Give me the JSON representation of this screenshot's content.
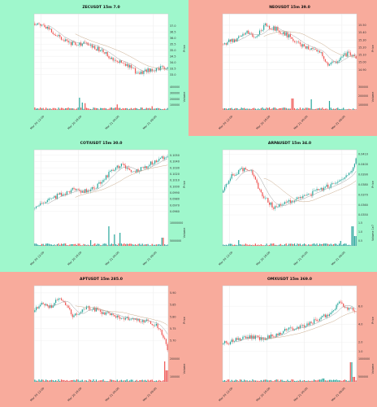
{
  "colors": {
    "green_bg": "#9ff7cc",
    "red_bg": "#f8ab9c",
    "up": "#26a69a",
    "down": "#ef5350",
    "ma_fast": "#9e9e9e",
    "ma_slow": "#c8a989"
  },
  "chart_data": [
    {
      "type": "candlestick",
      "title": "ZECUSDT 15m 7.0",
      "background": "green",
      "ylabel_price": "Price",
      "ylabel_volume": "Volume",
      "price_range": [
        32.3,
        37.8
      ],
      "price_ticks": [
        "37.0",
        "36.5",
        "36.0",
        "35.5",
        "35.0",
        "34.5",
        "34.0",
        "33.5",
        "33.0"
      ],
      "volume_ticks": [
        "400000",
        "300000",
        "200000",
        "100000"
      ],
      "volume_max": 400000,
      "x_ticks": [
        "Mar 20 12:00",
        "Mar 20 18:00",
        "Mar 21 00:00",
        "Mar 21 06:00"
      ],
      "start_price": 37.2,
      "end_price": 33.6,
      "path": [
        [
          0,
          37.2
        ],
        [
          0.08,
          37.1
        ],
        [
          0.18,
          36.2
        ],
        [
          0.28,
          35.6
        ],
        [
          0.4,
          35.5
        ],
        [
          0.5,
          35.0
        ],
        [
          0.58,
          34.4
        ],
        [
          0.68,
          33.9
        ],
        [
          0.78,
          33.1
        ],
        [
          0.86,
          33.4
        ],
        [
          1,
          33.6
        ]
      ],
      "volume_spikes": [
        [
          0.34,
          200000
        ],
        [
          0.36,
          120000
        ],
        [
          0.38,
          110000
        ],
        [
          0.62,
          90000
        ],
        [
          0.88,
          60000
        ]
      ]
    },
    {
      "type": "candlestick",
      "title": "NEOUSDT 15m 39.0",
      "background": "red",
      "ylabel_price": "Price",
      "ylabel_volume": "Volume",
      "price_range": [
        14.72,
        15.62
      ],
      "price_ticks": [
        "15.50",
        "15.40",
        "15.30",
        "15.20",
        "15.10",
        "15.00",
        "14.90"
      ],
      "volume_ticks": [
        "300000",
        "200000",
        "100000"
      ],
      "volume_max": 300000,
      "x_ticks": [
        "Mar 20 12:00",
        "Mar 20 18:00",
        "Mar 21 00:00",
        "Mar 21 06:00"
      ],
      "start_price": 15.25,
      "end_price": 15.05,
      "path": [
        [
          0,
          15.25
        ],
        [
          0.1,
          15.3
        ],
        [
          0.18,
          15.42
        ],
        [
          0.25,
          15.33
        ],
        [
          0.32,
          15.5
        ],
        [
          0.4,
          15.45
        ],
        [
          0.48,
          15.38
        ],
        [
          0.56,
          15.25
        ],
        [
          0.65,
          15.2
        ],
        [
          0.74,
          15.12
        ],
        [
          0.8,
          14.95
        ],
        [
          0.88,
          15.05
        ],
        [
          0.94,
          15.12
        ],
        [
          1,
          15.05
        ]
      ],
      "volume_spikes": [
        [
          0.52,
          140000
        ],
        [
          0.66,
          130000
        ],
        [
          0.8,
          110000
        ]
      ]
    },
    {
      "type": "candlestick",
      "title": "COTIUSDT 15m 30.0",
      "background": "green",
      "ylabel_price": "Price",
      "ylabel_volume": "Volume",
      "price_range": [
        0.0948,
        0.1055
      ],
      "price_ticks": [
        "0.1050",
        "0.1040",
        "0.1030",
        "0.1020",
        "0.1010",
        "0.1000",
        "0.0990",
        "0.0980",
        "0.0970",
        "0.0960"
      ],
      "volume_ticks": [
        "10000000",
        "5000000"
      ],
      "volume_max": 15000000,
      "x_ticks": [
        "Mar 20 12:00",
        "Mar 20 18:00",
        "Mar 21 00:00",
        "Mar 21 06:00"
      ],
      "start_price": 0.0965,
      "end_price": 0.1048,
      "path": [
        [
          0,
          0.0965
        ],
        [
          0.08,
          0.0975
        ],
        [
          0.18,
          0.0985
        ],
        [
          0.3,
          0.0995
        ],
        [
          0.4,
          0.0992
        ],
        [
          0.5,
          0.1005
        ],
        [
          0.58,
          0.1025
        ],
        [
          0.66,
          0.1035
        ],
        [
          0.74,
          0.1022
        ],
        [
          0.82,
          0.103
        ],
        [
          0.9,
          0.104
        ],
        [
          1,
          0.1048
        ]
      ],
      "volume_spikes": [
        [
          0.56,
          12000000
        ],
        [
          0.6,
          7000000
        ],
        [
          0.64,
          8000000
        ],
        [
          0.42,
          3500000
        ],
        [
          0.96,
          5000000
        ]
      ]
    },
    {
      "type": "candlestick",
      "title": "ARPAUSDT 15m 34.0",
      "background": "green",
      "ylabel_price": "Price",
      "ylabel_volume": "Volume 1e7",
      "price_range": [
        0.0346,
        0.0412
      ],
      "price_ticks": [
        "0.0410",
        "0.0400",
        "0.0390",
        "0.0380",
        "0.0370",
        "0.0360",
        "0.0350"
      ],
      "volume_ticks": [
        "1.5",
        "1.0",
        "0.5"
      ],
      "volume_max": 1.5,
      "x_ticks": [
        "Mar 20 12:00",
        "Mar 20 18:00",
        "Mar 21 00:00",
        "Mar 21 06:00"
      ],
      "start_price": 0.0372,
      "end_price": 0.0406,
      "path": [
        [
          0,
          0.0372
        ],
        [
          0.08,
          0.039
        ],
        [
          0.15,
          0.0395
        ],
        [
          0.22,
          0.0392
        ],
        [
          0.3,
          0.037
        ],
        [
          0.38,
          0.0358
        ],
        [
          0.46,
          0.036
        ],
        [
          0.54,
          0.0365
        ],
        [
          0.62,
          0.0368
        ],
        [
          0.72,
          0.0375
        ],
        [
          0.82,
          0.038
        ],
        [
          0.9,
          0.0385
        ],
        [
          0.96,
          0.0392
        ],
        [
          1,
          0.0406
        ]
      ],
      "volume_spikes": [
        [
          0.12,
          0.35
        ],
        [
          0.88,
          0.3
        ],
        [
          0.97,
          1.2
        ],
        [
          0.99,
          0.6
        ]
      ]
    },
    {
      "type": "candlestick",
      "title": "APTUSDT 15m 285.0",
      "background": "red",
      "ylabel_price": "Price",
      "ylabel_volume": "Volume",
      "price_range": [
        5.64,
        5.92
      ],
      "price_ticks": [
        "5.90",
        "5.85",
        "5.80",
        "5.75",
        "5.70"
      ],
      "volume_ticks": [
        "200000",
        "100000"
      ],
      "volume_max": 300000,
      "x_ticks": [
        "Mar 20 12:00",
        "Mar 20 18:00",
        "Mar 21 00:00",
        "Mar 21 06:00"
      ],
      "start_price": 5.82,
      "end_price": 5.66,
      "path": [
        [
          0,
          5.82
        ],
        [
          0.06,
          5.86
        ],
        [
          0.12,
          5.84
        ],
        [
          0.2,
          5.88
        ],
        [
          0.3,
          5.8
        ],
        [
          0.38,
          5.84
        ],
        [
          0.46,
          5.83
        ],
        [
          0.56,
          5.81
        ],
        [
          0.66,
          5.8
        ],
        [
          0.76,
          5.79
        ],
        [
          0.86,
          5.78
        ],
        [
          0.93,
          5.76
        ],
        [
          0.97,
          5.72
        ],
        [
          1,
          5.66
        ]
      ],
      "volume_spikes": [
        [
          0.98,
          250000
        ],
        [
          0.99,
          140000
        ]
      ]
    },
    {
      "type": "candlestick",
      "title": "OMXUSDT 15m 369.0",
      "background": "red",
      "ylabel_price": "Price",
      "ylabel_volume": "Volume",
      "price_range": [
        0.6,
        8.0
      ],
      "price_ticks": [
        "6.0",
        "4.0",
        "2.0",
        "1.0"
      ],
      "volume_ticks": [
        "1000000",
        "500000"
      ],
      "volume_max": 1500000,
      "x_ticks": [
        "Mar 20 12:00",
        "Mar 20 18:00",
        "Mar 21 00:00",
        "Mar 21 06:00"
      ],
      "start_price": 1.8,
      "end_price": 5.4,
      "path": [
        [
          0,
          1.8
        ],
        [
          0.1,
          2.2
        ],
        [
          0.2,
          2.6
        ],
        [
          0.32,
          2.4
        ],
        [
          0.42,
          3.0
        ],
        [
          0.52,
          3.5
        ],
        [
          0.62,
          3.8
        ],
        [
          0.72,
          4.6
        ],
        [
          0.82,
          5.4
        ],
        [
          0.88,
          6.4
        ],
        [
          0.94,
          5.8
        ],
        [
          1,
          5.4
        ]
      ],
      "volume_spikes": [
        [
          0.96,
          1200000
        ],
        [
          0.98,
          300000
        ],
        [
          0.75,
          200000
        ]
      ]
    }
  ]
}
